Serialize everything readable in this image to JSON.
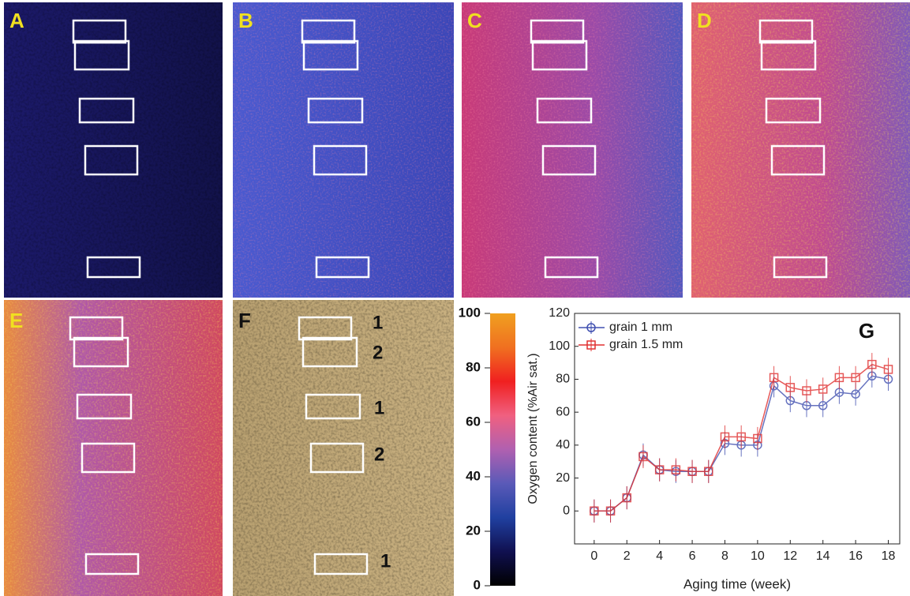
{
  "panels": [
    "A",
    "B",
    "C",
    "D",
    "E",
    "F"
  ],
  "f_labels": [
    "1",
    "2",
    "1",
    "2",
    "1"
  ],
  "chart_data": [
    {
      "type": "line",
      "label": "G",
      "x_label": "Aging time (week)",
      "y_label": "Oxygen content (%Air sat.)",
      "x": [
        0,
        1,
        2,
        3,
        4,
        5,
        6,
        7,
        8,
        9,
        10,
        11,
        12,
        13,
        14,
        15,
        16,
        17,
        18
      ],
      "series": [
        {
          "name": "grain 1 mm",
          "color": "#4050b0",
          "marker": "circle",
          "values": [
            0,
            0,
            8,
            34,
            25,
            24,
            24,
            24,
            41,
            40,
            40,
            76,
            67,
            64,
            64,
            72,
            71,
            82,
            80
          ],
          "errors": [
            7,
            7,
            7,
            7,
            7,
            7,
            7,
            7,
            7,
            7,
            7,
            7,
            7,
            7,
            7,
            7,
            7,
            7,
            7
          ]
        },
        {
          "name": "grain 1.5 mm",
          "color": "#e03030",
          "marker": "square",
          "values": [
            0,
            0,
            8,
            33,
            25,
            25,
            24,
            24,
            45,
            45,
            44,
            81,
            75,
            73,
            74,
            81,
            81,
            89,
            86
          ],
          "errors": [
            7,
            7,
            7,
            7,
            7,
            7,
            7,
            7,
            7,
            7,
            7,
            7,
            7,
            7,
            7,
            7,
            7,
            7,
            7
          ]
        }
      ],
      "xlim": [
        -1.2,
        18.7
      ],
      "xticks": [
        0,
        2,
        4,
        6,
        8,
        10,
        12,
        14,
        16,
        18
      ],
      "ylim": [
        -20,
        120
      ],
      "yticks": [
        0,
        20,
        40,
        60,
        80,
        100,
        120
      ],
      "legend": "upper left"
    },
    {
      "type": "colorbar",
      "ylim": [
        0,
        100
      ],
      "yticks": [
        0,
        20,
        40,
        60,
        80,
        100
      ],
      "colors": [
        "#000000",
        "#101050",
        "#2040a0",
        "#5a5ab8",
        "#b060b0",
        "#f06080",
        "#f02020",
        "#f07020",
        "#f0a020"
      ]
    }
  ]
}
